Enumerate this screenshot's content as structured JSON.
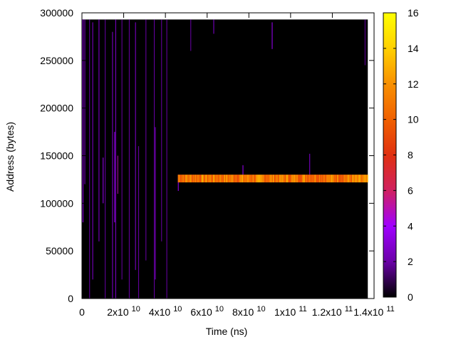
{
  "chart_data": {
    "type": "heatmap",
    "title": "",
    "xlabel": "Time (ns)",
    "ylabel": "Address (bytes)",
    "xlim": [
      0,
      140000000000
    ],
    "ylim": [
      0,
      300000
    ],
    "x_ticks": [
      {
        "value": 0,
        "base": "0",
        "exp": ""
      },
      {
        "value": 20000000000,
        "base": "2x10",
        "exp": "10"
      },
      {
        "value": 40000000000,
        "base": "4x10",
        "exp": "10"
      },
      {
        "value": 60000000000,
        "base": "6x10",
        "exp": "10"
      },
      {
        "value": 80000000000,
        "base": "8x10",
        "exp": "10"
      },
      {
        "value": 100000000000,
        "base": "1x10",
        "exp": "11"
      },
      {
        "value": 120000000000,
        "base": "1.2x10",
        "exp": "11"
      },
      {
        "value": 140000000000,
        "base": "1.4x10",
        "exp": "11"
      }
    ],
    "y_ticks": [
      {
        "value": 0,
        "label": "0"
      },
      {
        "value": 50000,
        "label": "50000"
      },
      {
        "value": 100000,
        "label": "100000"
      },
      {
        "value": 150000,
        "label": "150000"
      },
      {
        "value": 200000,
        "label": "200000"
      },
      {
        "value": 250000,
        "label": "250000"
      },
      {
        "value": 300000,
        "label": "300000"
      }
    ],
    "colorbar": {
      "range": [
        0,
        16
      ],
      "ticks": [
        {
          "value": 0,
          "label": "0"
        },
        {
          "value": 2,
          "label": "2"
        },
        {
          "value": 4,
          "label": "4"
        },
        {
          "value": 6,
          "label": "6"
        },
        {
          "value": 8,
          "label": "8"
        },
        {
          "value": 10,
          "label": "10"
        },
        {
          "value": 12,
          "label": "12"
        },
        {
          "value": 14,
          "label": "14"
        },
        {
          "value": 16,
          "label": "16"
        }
      ],
      "colors": [
        "#000000",
        "#6a00a8",
        "#a000ff",
        "#d02060",
        "#e03010",
        "#f06000",
        "#f89000",
        "#ffd000",
        "#ffff00"
      ]
    },
    "data_extent": {
      "x": [
        0,
        137000000000
      ],
      "y": [
        0,
        293000
      ]
    },
    "background_value": 0,
    "bands": [
      {
        "x": [
          46000000000,
          137000000000
        ],
        "y": [
          122000,
          130000
        ],
        "value": 11
      }
    ],
    "streaks": [
      {
        "x": 300000000,
        "y": [
          80000,
          293000
        ],
        "value": 4
      },
      {
        "x": 1200000000,
        "y": [
          120000,
          293000
        ],
        "value": 3
      },
      {
        "x": 3500000000,
        "y": [
          0,
          293000
        ],
        "value": 2
      },
      {
        "x": 5000000000,
        "y": [
          20000,
          290000
        ],
        "value": 3
      },
      {
        "x": 8000000000,
        "y": [
          60000,
          293000
        ],
        "value": 3
      },
      {
        "x": 10000000000,
        "y": [
          100000,
          148000
        ],
        "value": 4
      },
      {
        "x": 11000000000,
        "y": [
          0,
          293000
        ],
        "value": 2
      },
      {
        "x": 14500000000,
        "y": [
          0,
          280000
        ],
        "value": 3
      },
      {
        "x": 15500000000,
        "y": [
          80000,
          175000
        ],
        "value": 4
      },
      {
        "x": 16000000000,
        "y": [
          0,
          293000
        ],
        "value": 3
      },
      {
        "x": 17000000000,
        "y": [
          110000,
          150000
        ],
        "value": 5
      },
      {
        "x": 19000000000,
        "y": [
          20000,
          293000
        ],
        "value": 2
      },
      {
        "x": 22500000000,
        "y": [
          0,
          293000
        ],
        "value": 2
      },
      {
        "x": 25500000000,
        "y": [
          30000,
          290000
        ],
        "value": 3
      },
      {
        "x": 27000000000,
        "y": [
          0,
          160000
        ],
        "value": 2
      },
      {
        "x": 30500000000,
        "y": [
          40000,
          293000
        ],
        "value": 2
      },
      {
        "x": 34500000000,
        "y": [
          0,
          293000
        ],
        "value": 2
      },
      {
        "x": 35000000000,
        "y": [
          20000,
          180000
        ],
        "value": 3
      },
      {
        "x": 38000000000,
        "y": [
          60000,
          293000
        ],
        "value": 2
      },
      {
        "x": 40500000000,
        "y": [
          0,
          293000
        ],
        "value": 2
      },
      {
        "x": 46000000000,
        "y": [
          113000,
          130000
        ],
        "value": 4
      },
      {
        "x": 52000000000,
        "y": [
          260000,
          293000
        ],
        "value": 2
      },
      {
        "x": 63000000000,
        "y": [
          278000,
          293000
        ],
        "value": 3
      },
      {
        "x": 77000000000,
        "y": [
          130000,
          140000
        ],
        "value": 4
      },
      {
        "x": 91000000000,
        "y": [
          262000,
          290000
        ],
        "value": 4
      },
      {
        "x": 109000000000,
        "y": [
          130000,
          152000
        ],
        "value": 3
      },
      {
        "x": 135500000000,
        "y": [
          245000,
          293000
        ],
        "value": 2
      }
    ]
  }
}
